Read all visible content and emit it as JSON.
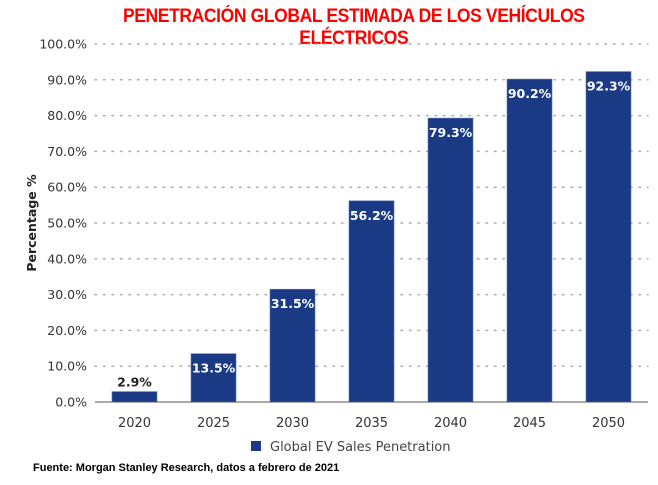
{
  "chart_data": {
    "type": "bar",
    "title": "PENETRACIÓN GLOBAL ESTIMADA DE LOS VEHÍCULOS ELÉCTRICOS",
    "xlabel": "",
    "ylabel": "Percentage %",
    "categories": [
      "2020",
      "2025",
      "2030",
      "2035",
      "2040",
      "2045",
      "2050"
    ],
    "series": [
      {
        "name": "Global EV Sales Penetration",
        "values": [
          2.9,
          13.5,
          31.5,
          56.2,
          79.3,
          90.2,
          92.3
        ],
        "labels": [
          "2.9%",
          "13.5%",
          "31.5%",
          "56.2%",
          "79.3%",
          "90.2%",
          "92.3%"
        ],
        "color": "#1a3a85"
      }
    ],
    "ylim": [
      0,
      100
    ],
    "yticks": [
      0,
      10,
      20,
      30,
      40,
      50,
      60,
      70,
      80,
      90,
      100
    ],
    "ytick_labels": [
      "0.0%",
      "10.0%",
      "20.0%",
      "30.0%",
      "40.0%",
      "50.0%",
      "60.0%",
      "70.0%",
      "80.0%",
      "90.0%",
      "100.0%"
    ],
    "grid": "horizontal-dotted",
    "legend": "bottom-center",
    "title_color": "#ff0000",
    "source": "Fuente: Morgan Stanley Research, datos a febrero de 2021"
  }
}
